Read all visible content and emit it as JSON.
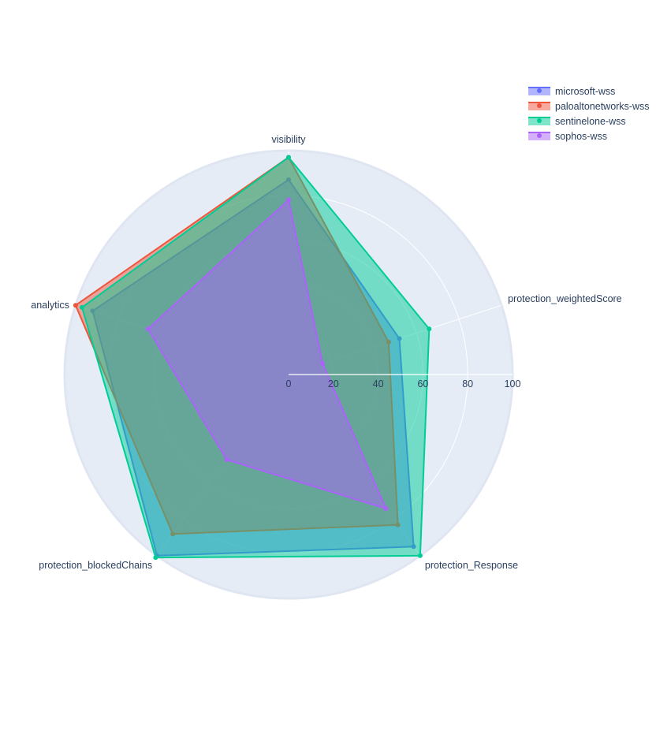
{
  "chart_data": {
    "type": "radar",
    "title": "",
    "categories": [
      "protection_weightedScore",
      "visibility",
      "analytics",
      "protection_blockedChains",
      "protection_Response"
    ],
    "radial_axis": {
      "range": [
        0,
        100
      ],
      "ticks": [
        0,
        20,
        40,
        60,
        80,
        100
      ],
      "tick_labels": [
        "0",
        "20",
        "40",
        "60",
        "80",
        "100"
      ]
    },
    "grid": true,
    "legend_position": "top-right",
    "series": [
      {
        "name": "microsoft-wss",
        "color": "#636efa",
        "values": [
          52,
          87,
          92,
          100,
          95
        ]
      },
      {
        "name": "paloaltonetworks-wss",
        "color": "#ef553b",
        "values": [
          47,
          97,
          100,
          88,
          83
        ]
      },
      {
        "name": "sentinelone-wss",
        "color": "#00cc96",
        "values": [
          66,
          97,
          97,
          101,
          100
        ]
      },
      {
        "name": "sophos-wss",
        "color": "#ab63fa",
        "values": [
          16,
          78,
          66,
          47,
          74
        ]
      }
    ]
  }
}
